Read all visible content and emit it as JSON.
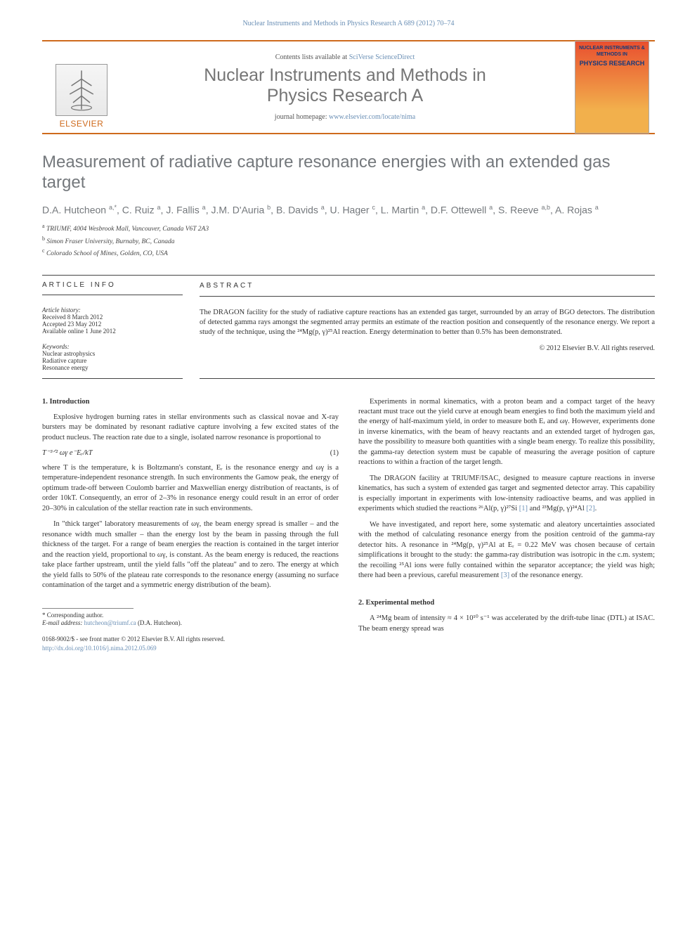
{
  "running_head": "Nuclear Instruments and Methods in Physics Research A 689 (2012) 70–74",
  "masthead": {
    "contents_pre": "Contents lists available at ",
    "contents_link": "SciVerse ScienceDirect",
    "journal_line1": "Nuclear Instruments and Methods in",
    "journal_line2": "Physics Research A",
    "homepage_pre": "journal homepage: ",
    "homepage_link": "www.elsevier.com/locate/nima",
    "publisher": "ELSEVIER",
    "cover": {
      "line1": "NUCLEAR INSTRUMENTS & METHODS IN",
      "line2": "PHYSICS RESEARCH"
    }
  },
  "title": "Measurement of radiative capture resonance energies with an extended gas target",
  "authors_html": "D.A. Hutcheon <sup>a,*</sup>, C. Ruiz <sup>a</sup>, J. Fallis <sup>a</sup>, J.M. D'Auria <sup>b</sup>, B. Davids <sup>a</sup>, U. Hager <sup>c</sup>, L. Martin <sup>a</sup>, D.F. Ottewell <sup>a</sup>, S. Reeve <sup>a,b</sup>, A. Rojas <sup>a</sup>",
  "affils": {
    "a": "TRIUMF, 4004 Wesbrook Mall, Vancouver, Canada V6T 2A3",
    "b": "Simon Fraser University, Burnaby, BC, Canada",
    "c": "Colorado School of Mines, Golden, CO, USA"
  },
  "info": {
    "head": "ARTICLE INFO",
    "history_label": "Article history:",
    "received": "Received 8 March 2012",
    "accepted": "Accepted 23 May 2012",
    "online": "Available online 1 June 2012",
    "keywords_label": "Keywords:",
    "kw1": "Nuclear astrophysics",
    "kw2": "Radiative capture",
    "kw3": "Resonance energy"
  },
  "abstract": {
    "head": "ABSTRACT",
    "text": "The DRAGON facility for the study of radiative capture reactions has an extended gas target, surrounded by an array of BGO detectors. The distribution of detected gamma rays amongst the segmented array permits an estimate of the reaction position and consequently of the resonance energy. We report a study of the technique, using the ²⁴Mg(p, γ)²⁵Al reaction. Energy determination to better than 0.5% has been demonstrated.",
    "copyright": "© 2012 Elsevier B.V. All rights reserved."
  },
  "body": {
    "s1_head": "1. Introduction",
    "s1_p1": "Explosive hydrogen burning rates in stellar environments such as classical novae and X-ray bursters may be dominated by resonant radiative capture involving a few excited states of the product nucleus. The reaction rate due to a single, isolated narrow resonance is proportional to",
    "eqn_expr": "T⁻³ᐟ² ωγ e⁻Eᵣ/kT",
    "eqn_num": "(1)",
    "s1_p2": "where T is the temperature, k is Boltzmann's constant, Eᵣ is the resonance energy and ωγ is a temperature-independent resonance strength. In such environments the Gamow peak, the energy of optimum trade-off between Coulomb barrier and Maxwellian energy distribution of reactants, is of order 10kT. Consequently, an error of 2–3% in resonance energy could result in an error of order 20–30% in calculation of the stellar reaction rate in such environments.",
    "s1_p3": "In \"thick target\" laboratory measurements of ωγ, the beam energy spread is smaller – and the resonance width much smaller – than the energy lost by the beam in passing through the full thickness of the target. For a range of beam energies the reaction is contained in the target interior and the reaction yield, proportional to ωγ, is constant. As the beam energy is reduced, the reactions take place farther upstream, until the yield falls \"off the plateau\" and to zero. The energy at which the yield falls to 50% of the plateau rate corresponds to the resonance energy (assuming no surface contamination of the target and a symmetric energy distribution of the beam).",
    "s1_p4": "Experiments in normal kinematics, with a proton beam and a compact target of the heavy reactant must trace out the yield curve at enough beam energies to find both the maximum yield and the energy of half-maximum yield, in order to measure both Eᵣ and ωγ. However, experiments done in inverse kinematics, with the beam of heavy reactants and an extended target of hydrogen gas, have the possibility to measure both quantities with a single beam energy. To realize this possibility, the gamma-ray detection system must be capable of measuring the average position of capture reactions to within a fraction of the target length.",
    "s1_p5a": "The DRAGON facility at TRIUMF/ISAC, designed to measure capture reactions in inverse kinematics, has such a system of extended gas target and segmented detector array. This capability is especially important in experiments with low-intensity radioactive beams, and was applied in experiments which studied the reactions ²⁶Al(p, γ)²⁷Si ",
    "s1_ref1": "[1]",
    "s1_p5b": " and ²³Mg(p, γ)²⁴Al ",
    "s1_ref2": "[2]",
    "s1_p5c": ".",
    "s1_p6a": "We have investigated, and report here, some systematic and aleatory uncertainties associated with the method of calculating resonance energy from the position centroid of the gamma-ray detector hits. A resonance in ²⁴Mg(p, γ)²⁵Al at Eᵣ = 0.22 MeV was chosen because of certain simplifications it brought to the study: the gamma-ray distribution was isotropic in the c.m. system; the recoiling ²⁵Al ions were fully contained within the separator acceptance; the yield was high; there had been a previous, careful measurement ",
    "s1_ref3": "[3]",
    "s1_p6b": " of the resonance energy.",
    "s2_head": "2. Experimental method",
    "s2_p1": "A ²⁴Mg beam of intensity ≈ 4 × 10¹⁰ s⁻¹ was accelerated by the drift-tube linac (DTL) at ISAC. The beam energy spread was"
  },
  "footnotes": {
    "corr_label": "* Corresponding author.",
    "email_label": "E-mail address:",
    "email": "hutcheon@triumf.ca",
    "email_person": " (D.A. Hutcheon)."
  },
  "footer": {
    "left1": "0168-9002/$ - see front matter © 2012 Elsevier B.V. All rights reserved.",
    "left2": "http://dx.doi.org/10.1016/j.nima.2012.05.069"
  }
}
